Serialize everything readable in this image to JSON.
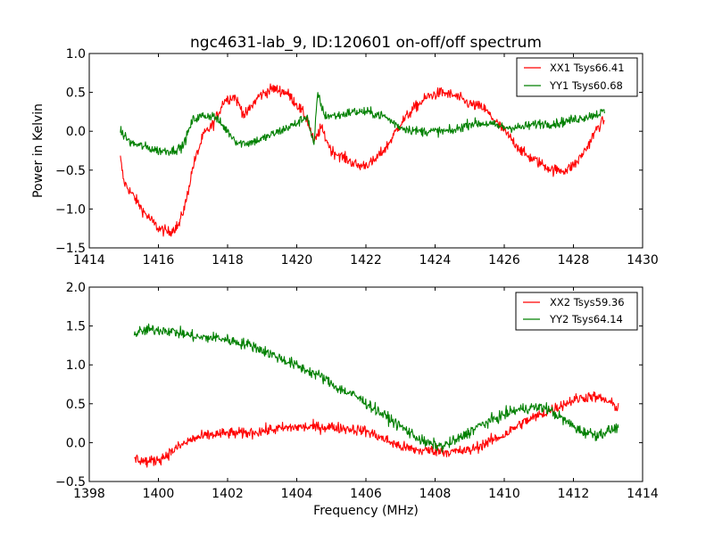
{
  "figure_title": "ngc4631-lab_9, ID:120601 on-off/off spectrum",
  "colors": {
    "red": "#ff0000",
    "green": "#008000",
    "axis": "#000000"
  },
  "chart_data": [
    {
      "type": "line",
      "title": "ngc4631-lab_9, ID:120601 on-off/off spectrum",
      "xlabel": "",
      "ylabel": "Power in Kelvin",
      "xlim": [
        1414,
        1430
      ],
      "ylim": [
        -1.5,
        1.0
      ],
      "xticks": [
        "1414",
        "1416",
        "1418",
        "1420",
        "1422",
        "1424",
        "1426",
        "1428",
        "1430"
      ],
      "yticks": [
        "−1.5",
        "−1.0",
        "−0.5",
        "0.0",
        "0.5",
        "1.0"
      ],
      "legend_position": "top-right",
      "grid": false,
      "series": [
        {
          "name": "XX1 Tsys66.41",
          "color": "#ff0000",
          "noise": 0.07,
          "x": [
            1414.9,
            1415.0,
            1415.3,
            1415.6,
            1416.0,
            1416.3,
            1416.6,
            1416.8,
            1417.0,
            1417.3,
            1417.6,
            1417.9,
            1418.2,
            1418.5,
            1418.9,
            1419.3,
            1419.7,
            1420.0,
            1420.3,
            1420.5,
            1420.7,
            1421.0,
            1421.4,
            1421.8,
            1422.2,
            1422.6,
            1423.0,
            1423.4,
            1423.8,
            1424.2,
            1424.6,
            1425.0,
            1425.4,
            1425.8,
            1426.2,
            1426.6,
            1427.0,
            1427.4,
            1427.8,
            1428.1,
            1428.4,
            1428.7,
            1428.9
          ],
          "y": [
            -0.35,
            -0.65,
            -0.85,
            -1.05,
            -1.25,
            -1.3,
            -1.2,
            -0.9,
            -0.45,
            -0.05,
            0.1,
            0.4,
            0.45,
            0.2,
            0.45,
            0.55,
            0.5,
            0.35,
            0.15,
            -0.15,
            0.05,
            -0.25,
            -0.35,
            -0.45,
            -0.4,
            -0.2,
            0.1,
            0.3,
            0.45,
            0.5,
            0.45,
            0.35,
            0.3,
            0.1,
            -0.1,
            -0.3,
            -0.4,
            -0.5,
            -0.5,
            -0.4,
            -0.2,
            0.05,
            0.15
          ]
        },
        {
          "name": "YY1 Tsys60.68",
          "color": "#008000",
          "noise": 0.06,
          "x": [
            1414.9,
            1415.2,
            1415.6,
            1416.0,
            1416.4,
            1416.7,
            1417.0,
            1417.3,
            1417.6,
            1418.0,
            1418.3,
            1418.6,
            1419.0,
            1419.5,
            1420.0,
            1420.3,
            1420.5,
            1420.6,
            1420.8,
            1421.2,
            1421.6,
            1422.0,
            1422.5,
            1423.0,
            1423.5,
            1424.0,
            1424.5,
            1425.0,
            1425.5,
            1426.0,
            1426.5,
            1427.0,
            1427.5,
            1428.0,
            1428.5,
            1428.9
          ],
          "y": [
            0.0,
            -0.15,
            -0.2,
            -0.25,
            -0.25,
            -0.2,
            0.15,
            0.2,
            0.2,
            0.0,
            -0.15,
            -0.15,
            -0.1,
            0.0,
            0.1,
            0.2,
            -0.2,
            0.5,
            0.2,
            0.2,
            0.25,
            0.25,
            0.2,
            0.05,
            0.0,
            0.0,
            0.0,
            0.1,
            0.1,
            0.05,
            0.05,
            0.1,
            0.1,
            0.15,
            0.2,
            0.25
          ]
        }
      ]
    },
    {
      "type": "line",
      "title": "",
      "xlabel": "Frequency (MHz)",
      "ylabel": "",
      "xlim": [
        1398,
        1414
      ],
      "ylim": [
        -0.5,
        2.0
      ],
      "xticks": [
        "1398",
        "1400",
        "1402",
        "1404",
        "1406",
        "1408",
        "1410",
        "1412",
        "1414"
      ],
      "yticks": [
        "−0.5",
        "0.0",
        "0.5",
        "1.0",
        "1.5",
        "2.0"
      ],
      "legend_position": "top-right",
      "grid": false,
      "series": [
        {
          "name": "XX2 Tsys59.36",
          "color": "#ff0000",
          "noise": 0.07,
          "x": [
            1399.3,
            1399.7,
            1400.1,
            1400.6,
            1401.0,
            1401.5,
            1402.0,
            1402.5,
            1403.0,
            1403.5,
            1404.0,
            1404.5,
            1405.0,
            1405.5,
            1406.0,
            1406.5,
            1407.0,
            1407.5,
            1408.0,
            1408.5,
            1409.0,
            1409.5,
            1410.0,
            1410.5,
            1411.0,
            1411.5,
            1412.0,
            1412.5,
            1412.9,
            1413.3
          ],
          "y": [
            -0.2,
            -0.25,
            -0.2,
            -0.05,
            0.05,
            0.1,
            0.12,
            0.12,
            0.15,
            0.18,
            0.2,
            0.2,
            0.2,
            0.18,
            0.15,
            0.05,
            -0.05,
            -0.1,
            -0.1,
            -0.12,
            -0.1,
            0.0,
            0.1,
            0.25,
            0.35,
            0.45,
            0.55,
            0.6,
            0.55,
            0.45
          ]
        },
        {
          "name": "YY2 Tsys64.14",
          "color": "#008000",
          "noise": 0.07,
          "x": [
            1399.3,
            1399.7,
            1400.2,
            1400.7,
            1401.2,
            1401.7,
            1402.2,
            1402.7,
            1403.2,
            1403.7,
            1404.2,
            1404.7,
            1405.2,
            1405.7,
            1406.2,
            1406.7,
            1407.2,
            1407.7,
            1408.2,
            1408.7,
            1409.2,
            1409.7,
            1410.2,
            1410.7,
            1411.2,
            1411.7,
            1412.2,
            1412.7,
            1413.3
          ],
          "y": [
            1.4,
            1.45,
            1.45,
            1.4,
            1.35,
            1.35,
            1.3,
            1.25,
            1.15,
            1.05,
            0.95,
            0.85,
            0.7,
            0.6,
            0.45,
            0.3,
            0.15,
            0.0,
            -0.05,
            0.05,
            0.2,
            0.3,
            0.4,
            0.45,
            0.45,
            0.3,
            0.15,
            0.1,
            0.2
          ]
        }
      ]
    }
  ]
}
